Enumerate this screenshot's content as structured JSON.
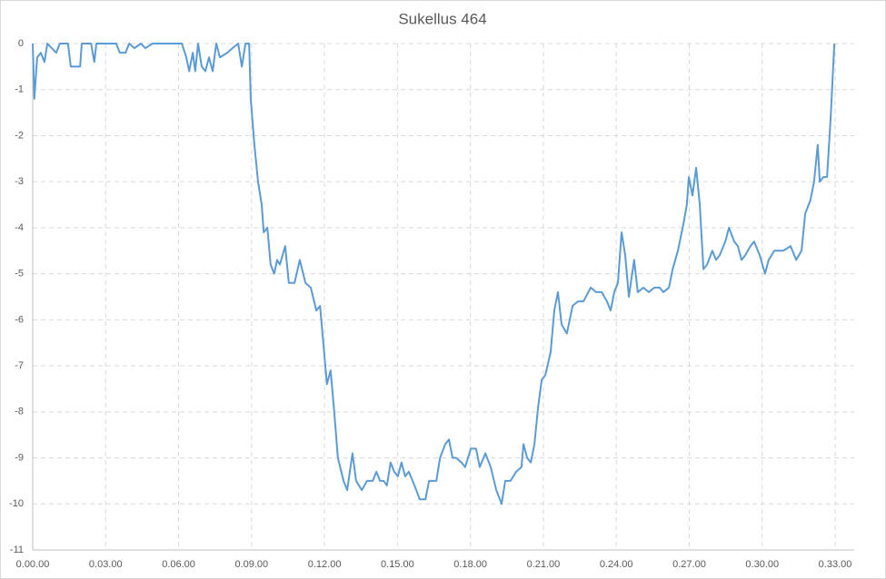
{
  "chart_data": {
    "type": "line",
    "title": "Sukellus 464",
    "x": [
      0,
      4,
      11,
      20,
      29,
      36,
      47,
      58,
      67,
      87,
      94,
      117,
      121,
      144,
      152,
      157,
      206,
      215,
      229,
      238,
      251,
      267,
      278,
      296,
      368,
      379,
      386,
      395,
      401,
      408,
      417,
      426,
      435,
      444,
      453,
      462,
      480,
      493,
      507,
      516,
      525,
      534,
      538,
      547,
      556,
      565,
      570,
      579,
      587,
      596,
      603,
      610,
      623,
      632,
      646,
      659,
      673,
      686,
      700,
      709,
      718,
      726,
      735,
      744,
      753,
      767,
      776,
      789,
      798,
      812,
      825,
      839,
      848,
      857,
      866,
      874,
      883,
      892,
      901,
      910,
      919,
      928,
      942,
      955,
      969,
      978,
      987,
      996,
      1005,
      1018,
      1027,
      1036,
      1045,
      1058,
      1067,
      1081,
      1094,
      1103,
      1117,
      1130,
      1144,
      1157,
      1166,
      1179,
      1193,
      1206,
      1211,
      1220,
      1229,
      1238,
      1247,
      1256,
      1265,
      1278,
      1287,
      1296,
      1305,
      1318,
      1332,
      1345,
      1359,
      1377,
      1390,
      1404,
      1417,
      1426,
      1435,
      1444,
      1453,
      1462,
      1471,
      1484,
      1493,
      1507,
      1520,
      1534,
      1547,
      1556,
      1570,
      1579,
      1592,
      1606,
      1614,
      1619,
      1628,
      1637,
      1646,
      1655,
      1664,
      1677,
      1686,
      1695,
      1709,
      1718,
      1731,
      1740,
      1749,
      1758,
      1771,
      1780,
      1794,
      1807,
      1816,
      1830,
      1852,
      1870,
      1884,
      1897,
      1906,
      1919,
      1928,
      1937,
      1942,
      1951,
      1960,
      1969,
      1978
    ],
    "series": [
      {
        "color": "#5b9bd5",
        "values": [
          0,
          -1.2,
          -0.3,
          -0.2,
          -0.4,
          0,
          -0.1,
          -0.2,
          0,
          0,
          -0.5,
          -0.5,
          0,
          0,
          -0.4,
          0,
          0,
          -0.2,
          -0.2,
          0,
          -0.1,
          0,
          -0.1,
          0,
          0,
          -0.3,
          -0.6,
          -0.2,
          -0.6,
          0,
          -0.5,
          -0.6,
          -0.3,
          -0.6,
          0,
          -0.3,
          -0.2,
          -0.1,
          0,
          -0.5,
          0,
          0,
          -1.2,
          -2.2,
          -3,
          -3.5,
          -4.1,
          -4,
          -4.8,
          -5,
          -4.7,
          -4.8,
          -4.4,
          -5.2,
          -5.2,
          -4.7,
          -5.2,
          -5.3,
          -5.8,
          -5.7,
          -6.6,
          -7.4,
          -7.1,
          -8,
          -9,
          -9.5,
          -9.7,
          -8.9,
          -9.5,
          -9.7,
          -9.5,
          -9.5,
          -9.3,
          -9.5,
          -9.5,
          -9.6,
          -9.1,
          -9.3,
          -9.4,
          -9.1,
          -9.4,
          -9.3,
          -9.6,
          -9.9,
          -9.9,
          -9.5,
          -9.5,
          -9.5,
          -9,
          -8.7,
          -8.6,
          -9,
          -9,
          -9.1,
          -9.2,
          -8.8,
          -8.8,
          -9.2,
          -8.9,
          -9.2,
          -9.7,
          -10,
          -9.5,
          -9.5,
          -9.3,
          -9.2,
          -8.7,
          -9,
          -9.1,
          -8.7,
          -7.9,
          -7.3,
          -7.2,
          -6.7,
          -5.8,
          -5.4,
          -6.1,
          -6.3,
          -5.7,
          -5.6,
          -5.6,
          -5.3,
          -5.4,
          -5.4,
          -5.6,
          -5.8,
          -5.4,
          -5.2,
          -4.1,
          -4.6,
          -5.5,
          -4.7,
          -5.4,
          -5.3,
          -5.4,
          -5.3,
          -5.3,
          -5.4,
          -5.3,
          -4.9,
          -4.5,
          -3.9,
          -3.5,
          -2.9,
          -3.3,
          -2.7,
          -3.5,
          -4.9,
          -4.8,
          -4.5,
          -4.7,
          -4.6,
          -4.3,
          -4,
          -4.3,
          -4.4,
          -4.7,
          -4.6,
          -4.4,
          -4.3,
          -4.6,
          -5,
          -4.7,
          -4.5,
          -4.5,
          -4.4,
          -4.7,
          -4.5,
          -3.7,
          -3.4,
          -3,
          -2.2,
          -3,
          -2.9,
          -2.9,
          -1.6,
          0
        ]
      }
    ],
    "xlim": [
      0,
      2027
    ],
    "xticks": [
      {
        "value": 0,
        "label": "0.00.00"
      },
      {
        "value": 180,
        "label": "0.03.00"
      },
      {
        "value": 360,
        "label": "0.06.00"
      },
      {
        "value": 540,
        "label": "0.09.00"
      },
      {
        "value": 720,
        "label": "0.12.00"
      },
      {
        "value": 900,
        "label": "0.15.00"
      },
      {
        "value": 1080,
        "label": "0.18.00"
      },
      {
        "value": 1260,
        "label": "0.21.00"
      },
      {
        "value": 1440,
        "label": "0.24.00"
      },
      {
        "value": 1620,
        "label": "0.27.00"
      },
      {
        "value": 1800,
        "label": "0.30.00"
      },
      {
        "value": 1980,
        "label": "0.33.00"
      }
    ],
    "ylim": [
      -11,
      0
    ],
    "yticks": [
      0,
      -1,
      -2,
      -3,
      -4,
      -5,
      -6,
      -7,
      -8,
      -9,
      -10,
      -11
    ],
    "grid": true
  }
}
